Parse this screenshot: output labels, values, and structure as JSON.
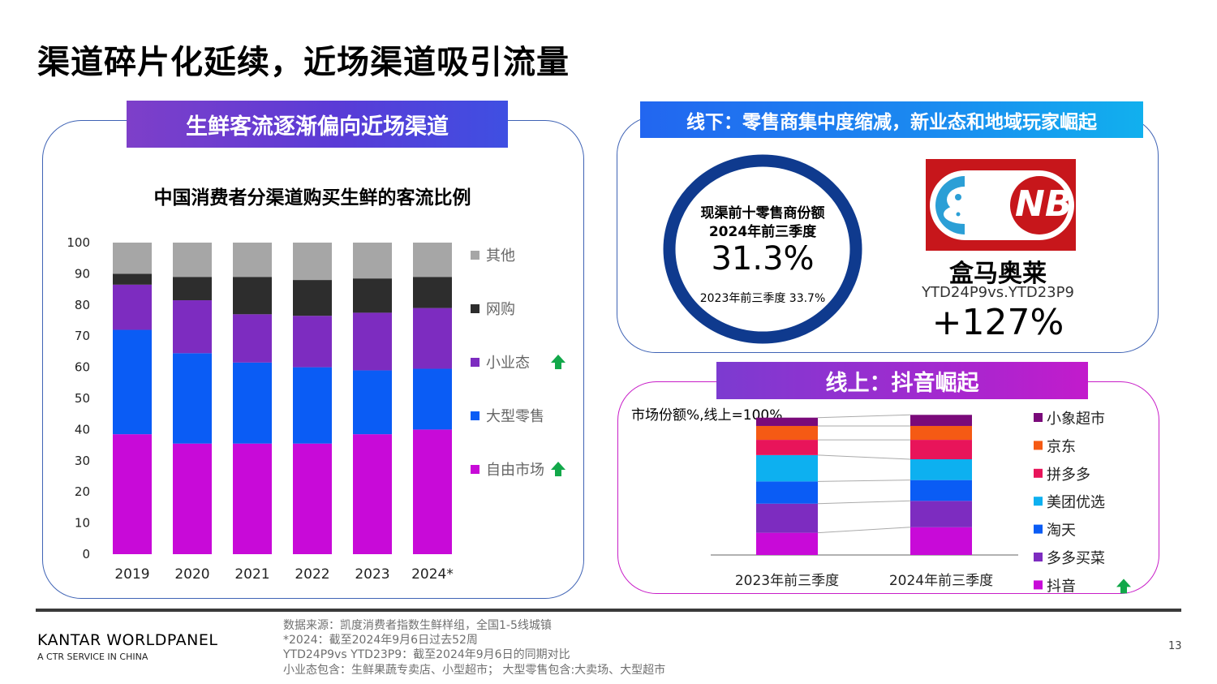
{
  "title": "渠道碎片化延续，近场渠道吸引流量",
  "left_panel": {
    "banner": "生鲜客流逐渐偏向近场渠道",
    "chart_title": "中国消费者分渠道购买生鲜的客流比例"
  },
  "top_right_panel": {
    "banner": "线下：零售商集中度缩减，新业态和地域玩家崛起",
    "ring_label_line1": "现渠前十零售商份额",
    "ring_label_line2": "2024年前三季度",
    "ring_value": "31.3%",
    "ring_prev": "2023年前三季度 33.7%",
    "logo_text": "NB",
    "retailer_name": "盒马奥莱",
    "retailer_period": "YTD24P9vs.YTD23P9",
    "retailer_growth": "+127%"
  },
  "bottom_right_panel": {
    "banner": "线上：抖音崛起",
    "subtitle": "市场份额%,线上=100%"
  },
  "footer": {
    "brand": "KANTAR WORLDPANEL",
    "brand_sub": "A CTR SERVICE IN CHINA",
    "notes": [
      "数据来源：凯度消费者指数生鲜样组，全国1-5线城镇",
      "*2024：截至2024年9月6日过去52周",
      "YTD24P9vs YTD23P9：截至2024年9月6日的同期对比",
      "小业态包含：生鲜果蔬专卖店、小型超市；  大型零售包含:大卖场、大型超市"
    ],
    "page_number": "13"
  },
  "colors": {
    "free_market": "#c80ad8",
    "large_retail": "#0a5cf5",
    "small_format": "#7d2cc0",
    "online": "#2d2d2d",
    "other": "#a6a6a6",
    "up_arrow": "#12a84a"
  },
  "chart_data": [
    {
      "type": "bar",
      "stacked": true,
      "categories": [
        "2019",
        "2020",
        "2021",
        "2022",
        "2023",
        "2024*"
      ],
      "ylim": [
        0,
        100
      ],
      "yticks": [
        0,
        10,
        20,
        30,
        40,
        50,
        60,
        70,
        80,
        90,
        100
      ],
      "legend_position": "right",
      "series": [
        {
          "name": "自由市场",
          "color": "#c80ad8",
          "up_arrow": true,
          "values": [
            38.5,
            35.5,
            35.5,
            35.5,
            38.5,
            40
          ]
        },
        {
          "name": "大型零售",
          "color": "#0a5cf5",
          "up_arrow": false,
          "values": [
            33.5,
            29,
            26,
            24.5,
            20.5,
            19.5
          ]
        },
        {
          "name": "小业态",
          "color": "#7d2cc0",
          "up_arrow": true,
          "values": [
            14.5,
            17,
            15.5,
            16.5,
            18.5,
            19.5
          ]
        },
        {
          "name": "网购",
          "color": "#2d2d2d",
          "up_arrow": false,
          "values": [
            3.5,
            7.5,
            12,
            11.5,
            11,
            10
          ]
        },
        {
          "name": "其他",
          "color": "#a6a6a6",
          "up_arrow": false,
          "values": [
            10,
            11,
            11,
            12,
            11.5,
            11
          ]
        }
      ]
    },
    {
      "type": "bar",
      "stacked": true,
      "categories": [
        "2023年前三季度",
        "2024年前三季度"
      ],
      "ylim": [
        0,
        100
      ],
      "legend_position": "right",
      "series": [
        {
          "name": "抖音",
          "color": "#c80ad8",
          "up_arrow": true,
          "values": [
            16,
            20
          ]
        },
        {
          "name": "多多买菜",
          "color": "#7d2cc0",
          "up_arrow": false,
          "values": [
            21,
            19
          ]
        },
        {
          "name": "淘天",
          "color": "#0a5cf5",
          "up_arrow": false,
          "values": [
            16,
            15
          ]
        },
        {
          "name": "美团优选",
          "color": "#0db0f0",
          "up_arrow": false,
          "values": [
            19,
            15
          ]
        },
        {
          "name": "拼多多",
          "color": "#e8145a",
          "up_arrow": false,
          "values": [
            11,
            14
          ]
        },
        {
          "name": "京东",
          "color": "#f55a14",
          "up_arrow": false,
          "values": [
            10,
            10
          ]
        },
        {
          "name": "小象超市",
          "color": "#7a0a7a",
          "up_arrow": false,
          "values": [
            6,
            8
          ]
        }
      ]
    }
  ]
}
